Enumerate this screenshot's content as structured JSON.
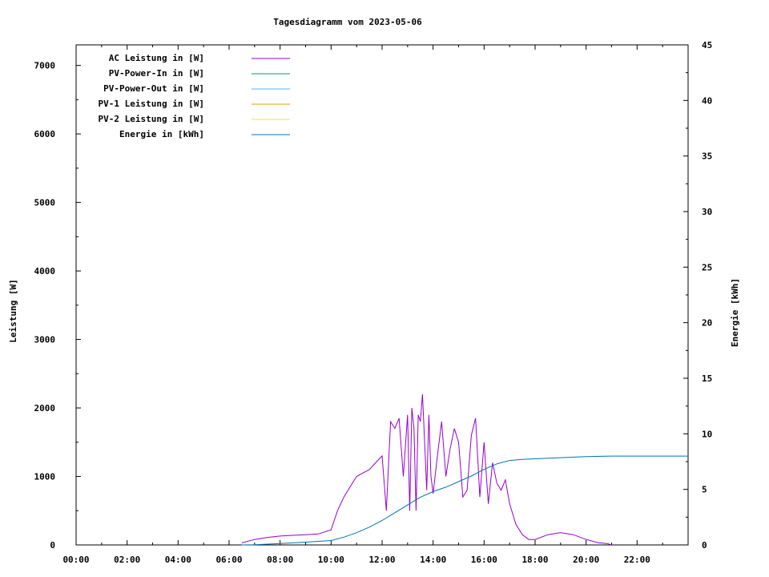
{
  "chart_data": {
    "type": "line",
    "title": "Tagesdiagramm vom 2023-05-06",
    "ylabel": "Leistung [W]",
    "y2label": "Energie [kWh]",
    "xlim": [
      "00:00",
      "24:00"
    ],
    "ylim": [
      0,
      7300
    ],
    "y2lim": [
      0,
      45
    ],
    "x_ticks": [
      "00:00",
      "02:00",
      "04:00",
      "06:00",
      "08:00",
      "10:00",
      "12:00",
      "14:00",
      "16:00",
      "18:00",
      "20:00",
      "22:00"
    ],
    "y_ticks": [
      "0",
      "1000",
      "2000",
      "3000",
      "4000",
      "5000",
      "6000",
      "7000"
    ],
    "y2_ticks": [
      "0",
      "5",
      "10",
      "15",
      "20",
      "25",
      "30",
      "35",
      "40",
      "45"
    ],
    "legend_position": "top-left",
    "grid": false,
    "series": [
      {
        "name": "AC Leistung in [W]",
        "color": "#9400d3",
        "axis": "left",
        "x": [
          "06:30",
          "07:00",
          "07:30",
          "08:00",
          "08:30",
          "09:00",
          "09:30",
          "10:00",
          "10:15",
          "10:30",
          "10:45",
          "11:00",
          "11:15",
          "11:30",
          "11:45",
          "12:00",
          "12:10",
          "12:20",
          "12:30",
          "12:40",
          "12:50",
          "13:00",
          "13:05",
          "13:10",
          "13:15",
          "13:20",
          "13:25",
          "13:30",
          "13:35",
          "13:40",
          "13:45",
          "13:50",
          "13:55",
          "14:00",
          "14:10",
          "14:20",
          "14:30",
          "14:40",
          "14:50",
          "15:00",
          "15:10",
          "15:20",
          "15:30",
          "15:40",
          "15:50",
          "16:00",
          "16:10",
          "16:20",
          "16:30",
          "16:40",
          "16:50",
          "17:00",
          "17:15",
          "17:30",
          "17:45",
          "18:00",
          "18:30",
          "19:00",
          "19:30",
          "20:00",
          "20:30",
          "20:50",
          "21:00"
        ],
        "values": [
          30,
          80,
          110,
          130,
          140,
          150,
          160,
          220,
          500,
          700,
          850,
          1000,
          1050,
          1100,
          1200,
          1300,
          500,
          1800,
          1700,
          1850,
          1000,
          1900,
          500,
          2000,
          1700,
          500,
          1900,
          1800,
          2200,
          1500,
          800,
          1900,
          1000,
          750,
          1300,
          1800,
          1000,
          1400,
          1700,
          1500,
          700,
          800,
          1600,
          1850,
          700,
          1500,
          600,
          1200,
          900,
          800,
          950,
          600,
          300,
          150,
          80,
          80,
          150,
          180,
          150,
          80,
          30,
          20,
          0
        ]
      },
      {
        "name": "PV-Power-In in [W]",
        "color": "#009e73",
        "axis": "left",
        "x": [],
        "values": []
      },
      {
        "name": "PV-Power-Out in [W]",
        "color": "#56b4e9",
        "axis": "left",
        "x": [],
        "values": []
      },
      {
        "name": "PV-1 Leistung in [W]",
        "color": "#e69f00",
        "axis": "left",
        "x": [],
        "values": []
      },
      {
        "name": "PV-2 Leistung in [W]",
        "color": "#f0e442",
        "axis": "left",
        "x": [],
        "values": []
      },
      {
        "name": "Energie in [kWh]",
        "color": "#0072b2",
        "axis": "right",
        "x": [
          "06:30",
          "07:00",
          "08:00",
          "09:00",
          "10:00",
          "10:30",
          "11:00",
          "11:30",
          "12:00",
          "12:30",
          "13:00",
          "13:30",
          "14:00",
          "14:30",
          "15:00",
          "15:30",
          "16:00",
          "16:30",
          "17:00",
          "17:30",
          "18:00",
          "19:00",
          "20:00",
          "21:00",
          "22:00",
          "23:00",
          "24:00"
        ],
        "values": [
          0,
          0.02,
          0.12,
          0.25,
          0.4,
          0.7,
          1.1,
          1.6,
          2.2,
          2.9,
          3.6,
          4.3,
          4.8,
          5.2,
          5.7,
          6.2,
          6.8,
          7.3,
          7.6,
          7.7,
          7.75,
          7.85,
          7.95,
          8.0,
          8.0,
          8.0,
          8.0
        ]
      }
    ]
  }
}
